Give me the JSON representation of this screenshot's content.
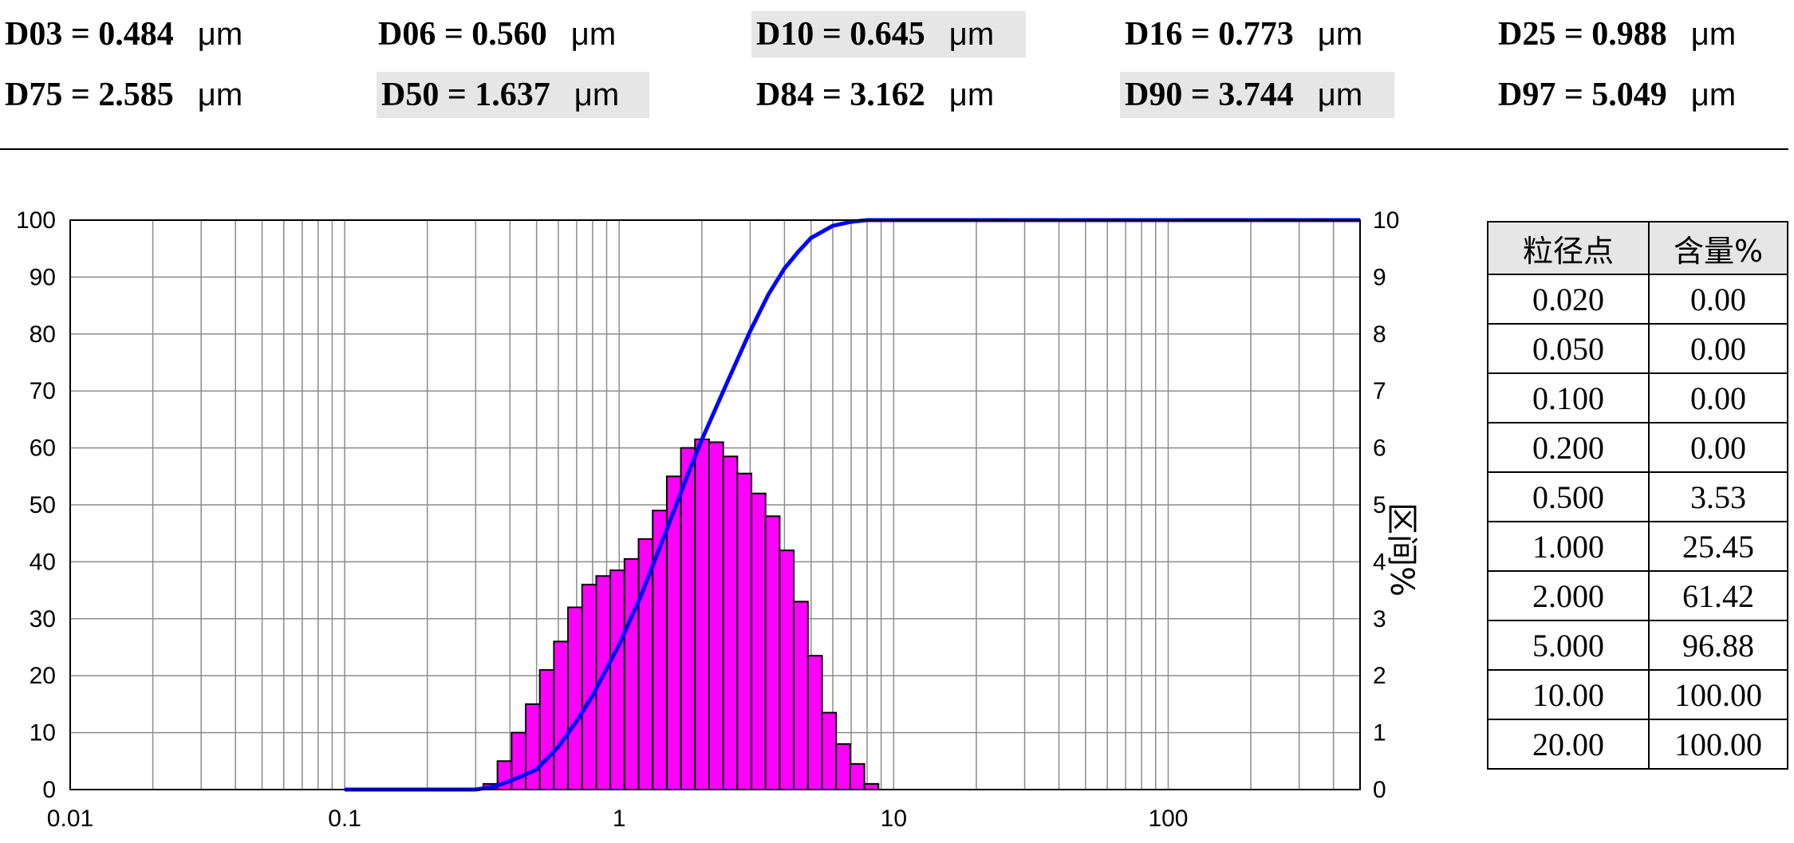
{
  "stats": {
    "unit": "μm",
    "row1": [
      {
        "label": "D03",
        "value": "0.484",
        "highlight": false
      },
      {
        "label": "D06",
        "value": "0.560",
        "highlight": false
      },
      {
        "label": "D10",
        "value": "0.645",
        "highlight": true
      },
      {
        "label": "D16",
        "value": "0.773",
        "highlight": false
      },
      {
        "label": "D25",
        "value": "0.988",
        "highlight": false
      }
    ],
    "row2": [
      {
        "label": "D75",
        "value": "2.585",
        "highlight": false
      },
      {
        "label": "D50",
        "value": "1.637",
        "highlight": true
      },
      {
        "label": "D84",
        "value": "3.162",
        "highlight": false
      },
      {
        "label": "D90",
        "value": "3.744",
        "highlight": true
      },
      {
        "label": "D97",
        "value": "5.049",
        "highlight": false
      }
    ]
  },
  "table": {
    "headers": [
      "粒径点",
      "含量%"
    ],
    "rows": [
      [
        "0.020",
        "0.00"
      ],
      [
        "0.050",
        "0.00"
      ],
      [
        "0.100",
        "0.00"
      ],
      [
        "0.200",
        "0.00"
      ],
      [
        "0.500",
        "3.53"
      ],
      [
        "1.000",
        "25.45"
      ],
      [
        "2.000",
        "61.42"
      ],
      [
        "5.000",
        "96.88"
      ],
      [
        "10.00",
        "100.00"
      ],
      [
        "20.00",
        "100.00"
      ]
    ]
  },
  "chart_data": {
    "type": "bar",
    "x_scale": "log",
    "xlim": [
      0.01,
      500
    ],
    "x_tick_labels": [
      "0.01",
      "0.1",
      "1",
      "10",
      "100"
    ],
    "x_ticks": [
      0.01,
      0.1,
      1,
      10,
      100
    ],
    "ylim": [
      0,
      100
    ],
    "y_tick_labels": [
      "0",
      "10",
      "20",
      "30",
      "40",
      "50",
      "60",
      "70",
      "80",
      "90",
      "100"
    ],
    "y2lim": [
      0,
      10
    ],
    "y2label": "区间%",
    "y2_tick_labels": [
      "0",
      "1",
      "2",
      "3",
      "4",
      "5",
      "6",
      "7",
      "8",
      "9",
      "10"
    ],
    "grid": true,
    "bar_color": "#ff00ff",
    "line_color": "#0000ff",
    "histogram": {
      "x_start": 0.32,
      "x_end": 8.8,
      "values": [
        0.1,
        0.5,
        1.0,
        1.5,
        2.1,
        2.6,
        3.2,
        3.6,
        3.75,
        3.85,
        4.05,
        4.4,
        4.9,
        5.5,
        6.0,
        6.15,
        6.1,
        5.85,
        5.55,
        5.2,
        4.8,
        4.2,
        3.3,
        2.35,
        1.35,
        0.8,
        0.45,
        0.1
      ]
    },
    "cumulative": {
      "x": [
        0.1,
        0.3,
        0.35,
        0.4,
        0.45,
        0.5,
        0.6,
        0.7,
        0.8,
        1.0,
        1.2,
        1.5,
        1.8,
        2.0,
        2.5,
        3.0,
        3.5,
        4.0,
        4.5,
        5.0,
        6.0,
        7.0,
        8.0,
        9.0,
        10.0,
        20.0,
        500
      ],
      "y": [
        0,
        0,
        0.5,
        1.5,
        2.5,
        3.53,
        7.5,
        12,
        16.5,
        25.45,
        34,
        46,
        56,
        61.42,
        72,
        80.5,
        87,
        91.5,
        94.5,
        96.88,
        99,
        99.7,
        100,
        100,
        100,
        100,
        100
      ]
    }
  }
}
